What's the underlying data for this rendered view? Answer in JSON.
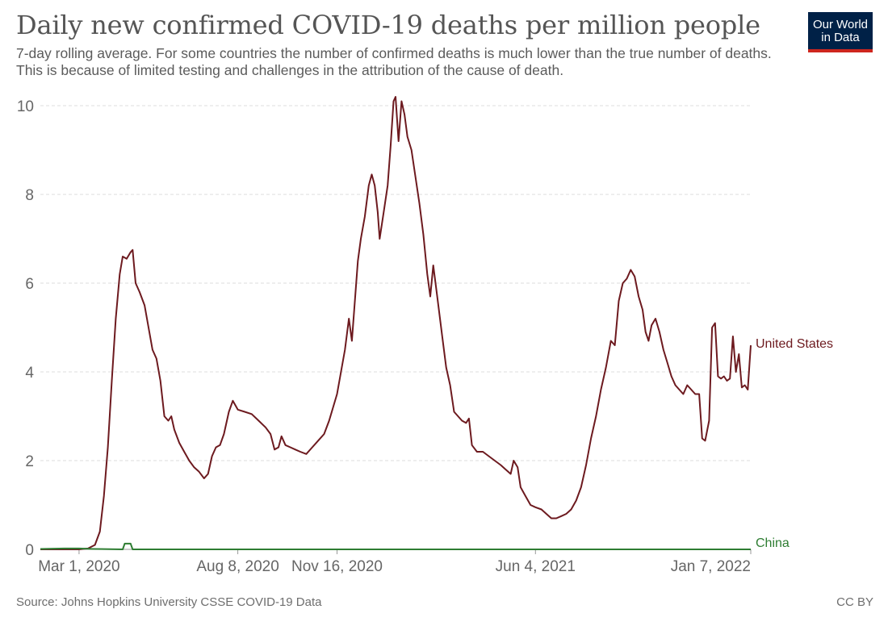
{
  "title": "Daily new confirmed COVID-19 deaths per million people",
  "subtitle": "7-day rolling average. For some countries the number of confirmed deaths is much lower than the true number of deaths. This is because of limited testing and challenges in the attribution of the cause of death.",
  "logo": {
    "line1": "Our World",
    "line2": "in Data"
  },
  "source": "Source: Johns Hopkins University CSSE COVID-19 Data",
  "license": "CC BY",
  "colors": {
    "united_states": "#6d1a1f",
    "china": "#2e7d32",
    "grid": "#dddddd",
    "axis_text": "#666666"
  },
  "chart_data": {
    "type": "line",
    "title": "Daily new confirmed COVID-19 deaths per million people",
    "xlabel": "",
    "ylabel": "",
    "x_type": "date",
    "xlim": [
      "2020-01-22",
      "2022-01-07"
    ],
    "ylim": [
      0,
      10
    ],
    "y_ticks": [
      0,
      2,
      4,
      6,
      8,
      10
    ],
    "y_tick_labels": [
      "0",
      "2",
      "4",
      "6",
      "8",
      "10"
    ],
    "x_ticks": [
      "2020-03-01",
      "2020-08-08",
      "2020-11-16",
      "2021-06-04",
      "2022-01-07"
    ],
    "x_tick_labels": [
      "Mar 1, 2020",
      "Aug 8, 2020",
      "Nov 16, 2020",
      "Jun 4, 2021",
      "Jan 7, 2022"
    ],
    "grid": "horizontal dashed",
    "legend": "line-end labels",
    "series": [
      {
        "name": "United States",
        "points": [
          [
            "2020-01-22",
            0
          ],
          [
            "2020-03-01",
            0
          ],
          [
            "2020-03-10",
            0.02
          ],
          [
            "2020-03-17",
            0.1
          ],
          [
            "2020-03-22",
            0.4
          ],
          [
            "2020-03-26",
            1.2
          ],
          [
            "2020-03-30",
            2.3
          ],
          [
            "2020-04-03",
            3.8
          ],
          [
            "2020-04-07",
            5.2
          ],
          [
            "2020-04-11",
            6.2
          ],
          [
            "2020-04-14",
            6.6
          ],
          [
            "2020-04-18",
            6.55
          ],
          [
            "2020-04-22",
            6.7
          ],
          [
            "2020-04-24",
            6.75
          ],
          [
            "2020-04-27",
            6.0
          ],
          [
            "2020-05-01",
            5.8
          ],
          [
            "2020-05-06",
            5.5
          ],
          [
            "2020-05-10",
            5.0
          ],
          [
            "2020-05-14",
            4.5
          ],
          [
            "2020-05-18",
            4.3
          ],
          [
            "2020-05-22",
            3.8
          ],
          [
            "2020-05-26",
            3.0
          ],
          [
            "2020-05-30",
            2.9
          ],
          [
            "2020-06-02",
            3.0
          ],
          [
            "2020-06-05",
            2.7
          ],
          [
            "2020-06-10",
            2.4
          ],
          [
            "2020-06-15",
            2.2
          ],
          [
            "2020-06-20",
            2.0
          ],
          [
            "2020-06-25",
            1.85
          ],
          [
            "2020-06-30",
            1.75
          ],
          [
            "2020-07-05",
            1.6
          ],
          [
            "2020-07-09",
            1.7
          ],
          [
            "2020-07-13",
            2.1
          ],
          [
            "2020-07-17",
            2.3
          ],
          [
            "2020-07-21",
            2.35
          ],
          [
            "2020-07-25",
            2.6
          ],
          [
            "2020-07-30",
            3.1
          ],
          [
            "2020-08-03",
            3.35
          ],
          [
            "2020-08-08",
            3.15
          ],
          [
            "2020-08-15",
            3.1
          ],
          [
            "2020-08-22",
            3.05
          ],
          [
            "2020-08-29",
            2.9
          ],
          [
            "2020-09-05",
            2.75
          ],
          [
            "2020-09-10",
            2.6
          ],
          [
            "2020-09-14",
            2.25
          ],
          [
            "2020-09-18",
            2.3
          ],
          [
            "2020-09-21",
            2.55
          ],
          [
            "2020-09-25",
            2.35
          ],
          [
            "2020-09-30",
            2.3
          ],
          [
            "2020-10-05",
            2.25
          ],
          [
            "2020-10-10",
            2.2
          ],
          [
            "2020-10-16",
            2.15
          ],
          [
            "2020-10-22",
            2.3
          ],
          [
            "2020-10-28",
            2.45
          ],
          [
            "2020-11-03",
            2.6
          ],
          [
            "2020-11-08",
            2.9
          ],
          [
            "2020-11-12",
            3.2
          ],
          [
            "2020-11-16",
            3.5
          ],
          [
            "2020-11-20",
            4.0
          ],
          [
            "2020-11-24",
            4.5
          ],
          [
            "2020-11-28",
            5.2
          ],
          [
            "2020-12-01",
            4.7
          ],
          [
            "2020-12-04",
            5.6
          ],
          [
            "2020-12-07",
            6.5
          ],
          [
            "2020-12-10",
            7.0
          ],
          [
            "2020-12-14",
            7.5
          ],
          [
            "2020-12-18",
            8.2
          ],
          [
            "2020-12-21",
            8.45
          ],
          [
            "2020-12-24",
            8.2
          ],
          [
            "2020-12-27",
            7.6
          ],
          [
            "2020-12-29",
            7.0
          ],
          [
            "2021-01-02",
            7.6
          ],
          [
            "2021-01-06",
            8.2
          ],
          [
            "2021-01-09",
            9.1
          ],
          [
            "2021-01-12",
            10.1
          ],
          [
            "2021-01-14",
            10.2
          ],
          [
            "2021-01-17",
            9.2
          ],
          [
            "2021-01-20",
            10.1
          ],
          [
            "2021-01-23",
            9.8
          ],
          [
            "2021-01-26",
            9.3
          ],
          [
            "2021-01-30",
            9.0
          ],
          [
            "2021-02-03",
            8.4
          ],
          [
            "2021-02-07",
            7.8
          ],
          [
            "2021-02-11",
            7.1
          ],
          [
            "2021-02-15",
            6.2
          ],
          [
            "2021-02-18",
            5.7
          ],
          [
            "2021-02-21",
            6.4
          ],
          [
            "2021-02-25",
            5.7
          ],
          [
            "2021-03-02",
            4.8
          ],
          [
            "2021-03-06",
            4.1
          ],
          [
            "2021-03-10",
            3.7
          ],
          [
            "2021-03-14",
            3.1
          ],
          [
            "2021-03-18",
            3.0
          ],
          [
            "2021-03-22",
            2.9
          ],
          [
            "2021-03-26",
            2.85
          ],
          [
            "2021-03-29",
            2.95
          ],
          [
            "2021-04-01",
            2.35
          ],
          [
            "2021-04-06",
            2.2
          ],
          [
            "2021-04-12",
            2.2
          ],
          [
            "2021-04-18",
            2.1
          ],
          [
            "2021-04-24",
            2.0
          ],
          [
            "2021-04-30",
            1.9
          ],
          [
            "2021-05-05",
            1.8
          ],
          [
            "2021-05-10",
            1.7
          ],
          [
            "2021-05-13",
            2.0
          ],
          [
            "2021-05-17",
            1.85
          ],
          [
            "2021-05-20",
            1.4
          ],
          [
            "2021-05-25",
            1.2
          ],
          [
            "2021-05-30",
            1.0
          ],
          [
            "2021-06-04",
            0.95
          ],
          [
            "2021-06-10",
            0.9
          ],
          [
            "2021-06-15",
            0.8
          ],
          [
            "2021-06-20",
            0.7
          ],
          [
            "2021-06-25",
            0.7
          ],
          [
            "2021-06-30",
            0.75
          ],
          [
            "2021-07-05",
            0.8
          ],
          [
            "2021-07-10",
            0.9
          ],
          [
            "2021-07-15",
            1.1
          ],
          [
            "2021-07-20",
            1.4
          ],
          [
            "2021-07-25",
            1.9
          ],
          [
            "2021-07-30",
            2.5
          ],
          [
            "2021-08-04",
            3.0
          ],
          [
            "2021-08-09",
            3.6
          ],
          [
            "2021-08-14",
            4.1
          ],
          [
            "2021-08-19",
            4.7
          ],
          [
            "2021-08-23",
            4.6
          ],
          [
            "2021-08-27",
            5.6
          ],
          [
            "2021-08-31",
            6.0
          ],
          [
            "2021-09-04",
            6.1
          ],
          [
            "2021-09-08",
            6.3
          ],
          [
            "2021-09-12",
            6.15
          ],
          [
            "2021-09-16",
            5.7
          ],
          [
            "2021-09-20",
            5.4
          ],
          [
            "2021-09-23",
            4.9
          ],
          [
            "2021-09-26",
            4.7
          ],
          [
            "2021-09-29",
            5.05
          ],
          [
            "2021-10-03",
            5.2
          ],
          [
            "2021-10-07",
            4.9
          ],
          [
            "2021-10-11",
            4.5
          ],
          [
            "2021-10-15",
            4.2
          ],
          [
            "2021-10-19",
            3.9
          ],
          [
            "2021-10-23",
            3.7
          ],
          [
            "2021-10-27",
            3.6
          ],
          [
            "2021-10-31",
            3.5
          ],
          [
            "2021-11-04",
            3.7
          ],
          [
            "2021-11-08",
            3.6
          ],
          [
            "2021-11-12",
            3.5
          ],
          [
            "2021-11-16",
            3.5
          ],
          [
            "2021-11-19",
            2.5
          ],
          [
            "2021-11-22",
            2.45
          ],
          [
            "2021-11-26",
            2.9
          ],
          [
            "2021-11-29",
            5.0
          ],
          [
            "2021-12-02",
            5.1
          ],
          [
            "2021-12-05",
            3.9
          ],
          [
            "2021-12-08",
            3.85
          ],
          [
            "2021-12-11",
            3.9
          ],
          [
            "2021-12-14",
            3.8
          ],
          [
            "2021-12-17",
            3.85
          ],
          [
            "2021-12-20",
            4.8
          ],
          [
            "2021-12-23",
            4.0
          ],
          [
            "2021-12-26",
            4.4
          ],
          [
            "2021-12-29",
            3.65
          ],
          [
            "2022-01-01",
            3.7
          ],
          [
            "2022-01-04",
            3.6
          ],
          [
            "2022-01-07",
            4.6
          ]
        ]
      },
      {
        "name": "China",
        "points": [
          [
            "2020-01-22",
            0.01
          ],
          [
            "2020-02-15",
            0.02
          ],
          [
            "2020-03-01",
            0.02
          ],
          [
            "2020-03-15",
            0.01
          ],
          [
            "2020-04-14",
            0.0
          ],
          [
            "2020-04-16",
            0.13
          ],
          [
            "2020-04-22",
            0.13
          ],
          [
            "2020-04-24",
            0.0
          ],
          [
            "2022-01-07",
            0.0
          ]
        ]
      }
    ]
  }
}
